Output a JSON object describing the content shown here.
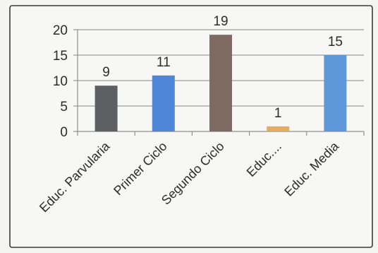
{
  "chart_data": {
    "type": "bar",
    "title": "",
    "xlabel": "",
    "ylabel": "",
    "categories": [
      "Educ. Parvularia",
      "Primer Ciclo",
      "Segundo Ciclo",
      "Educ....",
      "Educ. Media"
    ],
    "values": [
      9,
      11,
      19,
      1,
      15
    ],
    "colors": [
      "#5d5f63",
      "#4f86d8",
      "#7e6a61",
      "#e3ad5f",
      "#5f97db"
    ],
    "ylim": [
      0,
      20
    ],
    "yticks": [
      "0",
      "5",
      "10",
      "15",
      "20"
    ],
    "grid": true,
    "legend": "none"
  }
}
